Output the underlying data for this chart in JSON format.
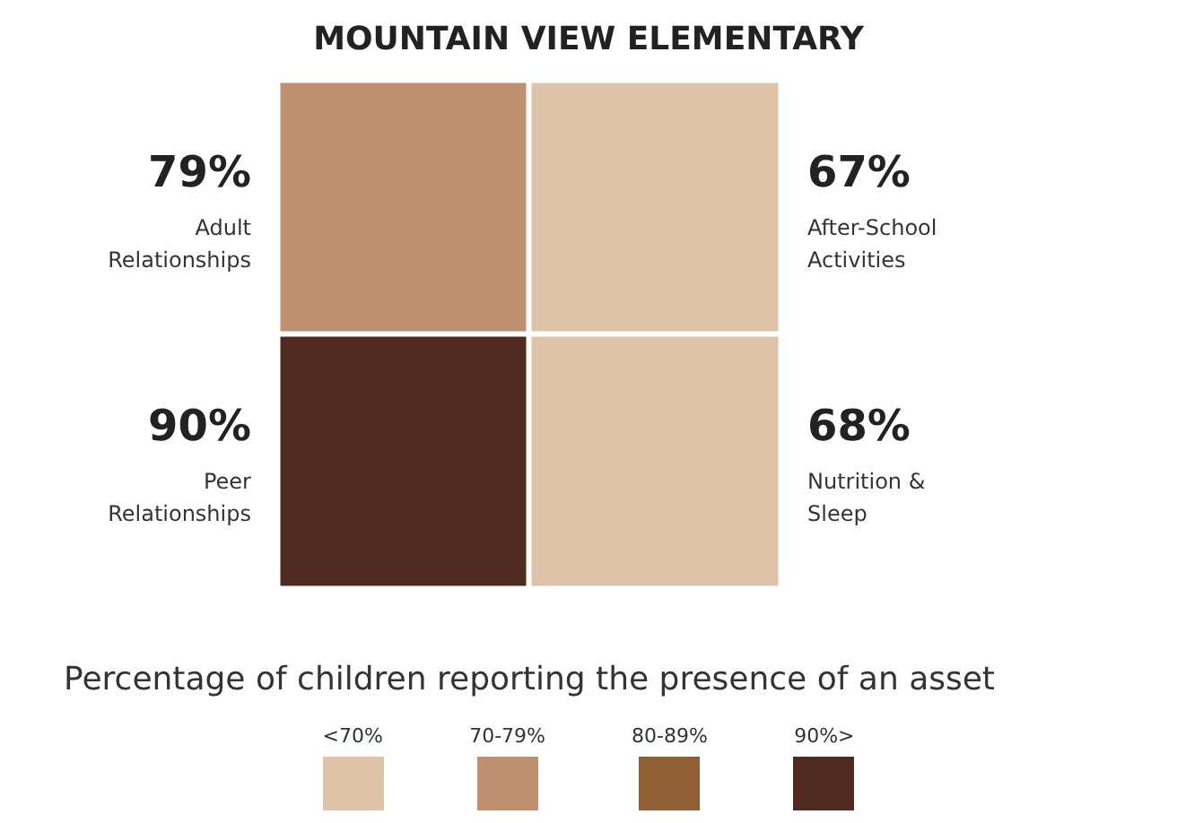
{
  "chart_data": {
    "type": "other",
    "title": "MOUNTAIN VIEW ELEMENTARY",
    "xlabel": "Percentage of children reporting the presence of an asset",
    "categories": [
      "Adult Relationships",
      "After-School Activities",
      "Peer Relationships",
      "Nutrition & Sleep"
    ],
    "values": [
      79,
      67,
      90,
      68
    ],
    "value_labels": [
      "79%",
      "67%",
      "90%",
      "68%"
    ],
    "colors": [
      "#bf9070",
      "#dfc3a9",
      "#4e2b1e",
      "#dfc3a9"
    ],
    "annotations": [
      "<70%",
      "70-79%",
      "80-89%",
      "90%>"
    ]
  }
}
